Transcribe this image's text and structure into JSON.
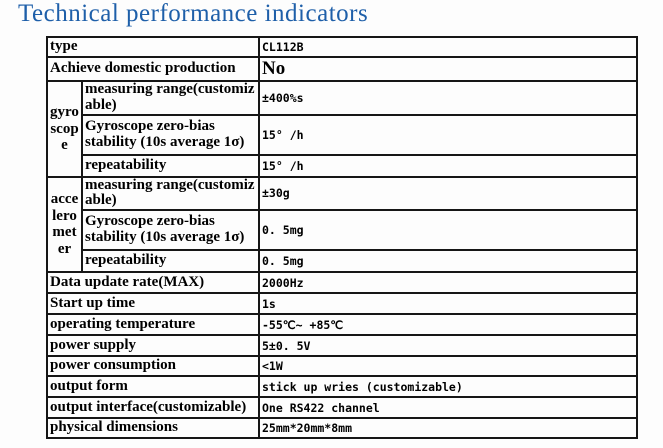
{
  "page": {
    "title": "Technical performance indicators"
  },
  "colors": {
    "title_blue": "#1e5fa9",
    "border": "#161616",
    "background": "#fdfdfd",
    "text": "#000000"
  },
  "table": {
    "groups": {
      "gyroscope": "gyroscope",
      "accelerometer": "accelerometer"
    },
    "rows": [
      {
        "label": "type",
        "value": "CL112B"
      },
      {
        "label": "Achieve  domestic production",
        "value": "No"
      },
      {
        "label": "measuring range(customizable)",
        "value": "±400%s"
      },
      {
        "label": "Gyroscope zero-bias stability (10s average 1σ)",
        "value": "15° /h"
      },
      {
        "label": "repeatability",
        "value": "15° /h"
      },
      {
        "label": "measuring range(customizable)",
        "value": "±30g"
      },
      {
        "label": "Gyroscope zero-bias stability (10s average 1σ)",
        "value": "0. 5mg"
      },
      {
        "label": "repeatability",
        "value": "0. 5mg"
      },
      {
        "label": "Data update rate(MAX)",
        "value": "2000Hz"
      },
      {
        "label": "Start up  time",
        "value": "1s"
      },
      {
        "label": "operating temperature",
        "value": "-55℃~ +85℃"
      },
      {
        "label": "power supply",
        "value": "5±0. 5V"
      },
      {
        "label": "power consumption",
        "value": "<1W"
      },
      {
        "label": "output form",
        "value": "stick up wries (customizable)"
      },
      {
        "label": "output interface(customizable)",
        "value": "One RS422 channel"
      },
      {
        "label": "physical dimensions",
        "value": "25mm*20mm*8mm"
      }
    ]
  }
}
